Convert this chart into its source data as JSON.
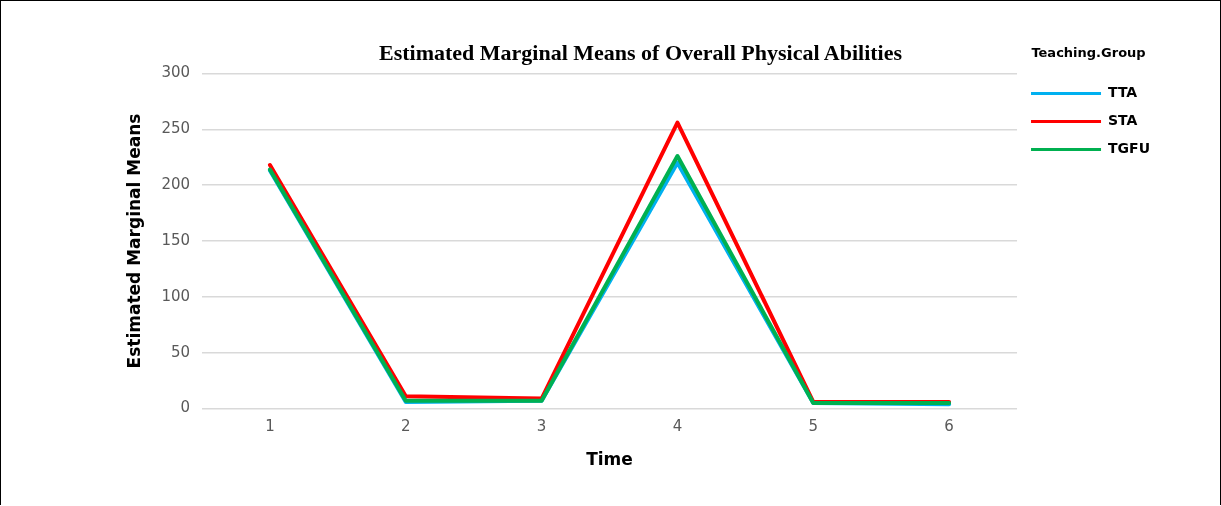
{
  "chart_data": {
    "type": "line",
    "title": "Estimated Marginal Means of Overall Physical Abilities",
    "xlabel": "Time",
    "ylabel": "Estimated Marginal Means",
    "legend_title": "Teaching.Group",
    "categories": [
      "1",
      "2",
      "3",
      "4",
      "5",
      "6"
    ],
    "series": [
      {
        "name": "TTA",
        "color": "#00b0f0",
        "values": [
          213,
          6,
          7,
          220,
          5,
          4
        ]
      },
      {
        "name": "STA",
        "color": "#ff0000",
        "values": [
          218,
          11,
          9,
          256,
          6,
          6
        ]
      },
      {
        "name": "TGFU",
        "color": "#00b050",
        "values": [
          214,
          7,
          7,
          226,
          5,
          5
        ]
      }
    ],
    "ylim": [
      0,
      300
    ],
    "yticks": [
      0,
      50,
      100,
      150,
      200,
      250,
      300
    ],
    "grid": "y",
    "legend": "right",
    "marker": "none",
    "line_style": "solid"
  }
}
